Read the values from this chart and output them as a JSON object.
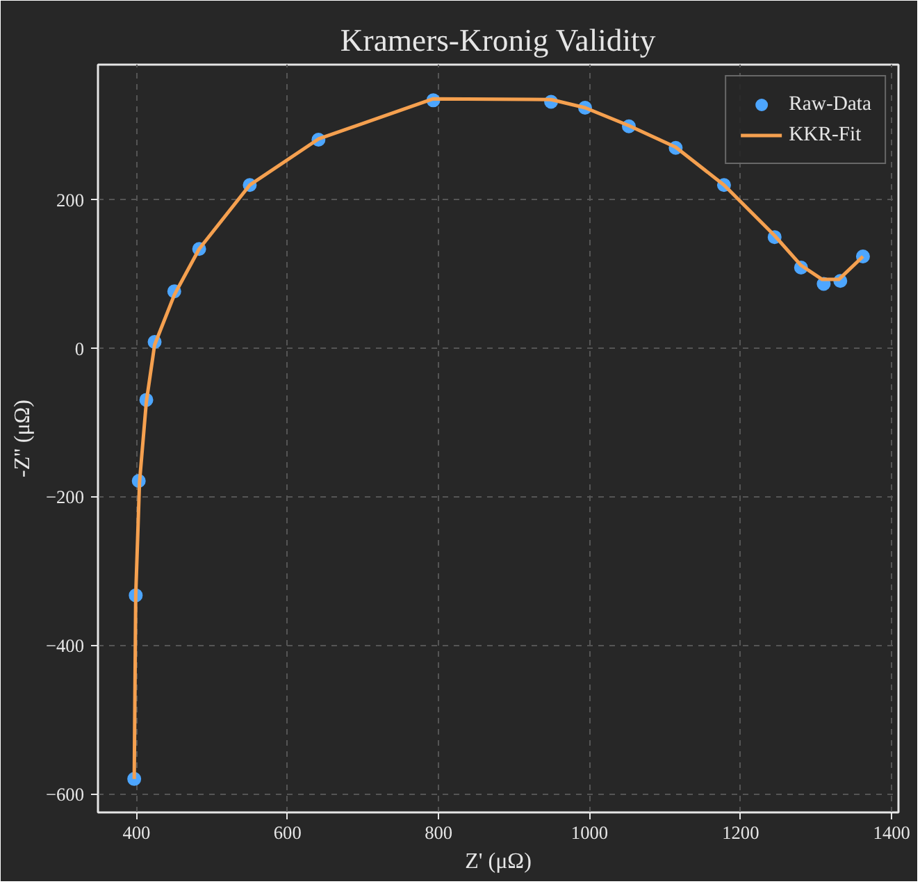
{
  "chart_data": {
    "type": "scatter",
    "title": "Kramers-Kronig Validity",
    "xlabel": "Z' (μΩ)",
    "ylabel": "-Z'' (μΩ)",
    "xlim": [
      349,
      1409
    ],
    "ylim": [
      -624,
      382
    ],
    "xticks": [
      400,
      600,
      800,
      1000,
      1200,
      1400
    ],
    "yticks": [
      -600,
      -400,
      -200,
      0,
      200
    ],
    "grid": true,
    "legend": "top right",
    "series": [
      {
        "name": "Raw-Data",
        "marker": "circle",
        "color": "#4da6ff",
        "x": [
          397,
          399,
          403,
          413,
          424,
          450,
          483,
          550,
          641,
          793,
          949,
          994,
          1052,
          1114,
          1178,
          1245,
          1280,
          1310,
          1332,
          1362
        ],
        "values": [
          -579,
          -332,
          -178,
          -69,
          9,
          77,
          134,
          220,
          281,
          334,
          332,
          324,
          299,
          270,
          220,
          150,
          109,
          87,
          91,
          124
        ]
      },
      {
        "name": "KKR-Fit",
        "type": "line",
        "line_style": "solid",
        "color": "#f5a04f",
        "x": [
          397,
          399,
          404,
          413,
          424,
          450,
          483,
          550,
          641,
          793,
          949,
          994,
          1052,
          1114,
          1178,
          1245,
          1280,
          1308,
          1330,
          1362
        ],
        "values": [
          -579,
          -332,
          -180,
          -72,
          5,
          72,
          134,
          220,
          282,
          336,
          335,
          324,
          300,
          271,
          220,
          152,
          112,
          93,
          93,
          124
        ]
      }
    ]
  }
}
